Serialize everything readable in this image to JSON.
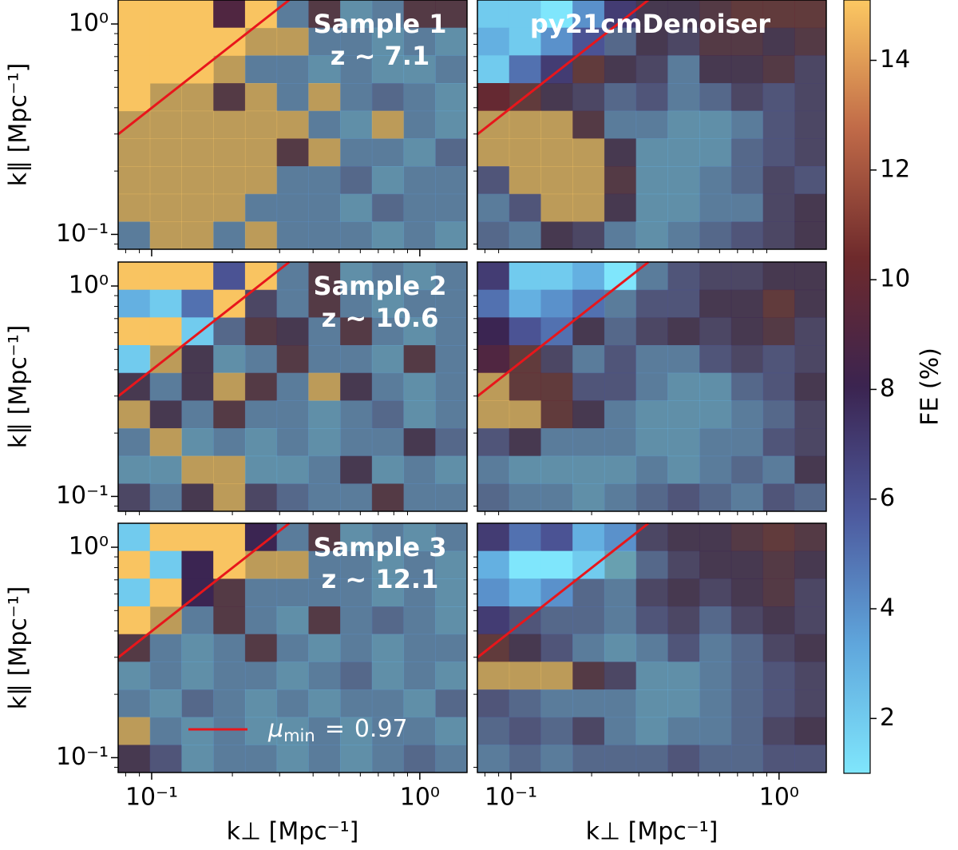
{
  "chart_data": [
    {
      "type": "heatmap",
      "title": [
        "Sample 1",
        "z ~ 7.1"
      ],
      "ylabel": "k∥ [Mpc⁻¹]",
      "xlim": [
        0.075,
        1.5
      ],
      "ylim": [
        0.085,
        1.3
      ],
      "xticks": [
        {
          "value": 0.1,
          "label": "10⁻¹"
        },
        {
          "value": 1,
          "label": "10⁰"
        }
      ],
      "yticks": [
        {
          "value": 0.1,
          "label": "10⁻¹"
        },
        {
          "value": 1,
          "label": "10⁰"
        }
      ],
      "mu_min": 0.97,
      "line_color": "#e8161b",
      "z": [
        [
          15,
          15,
          15,
          9,
          15,
          4,
          9,
          3,
          4,
          9,
          9
        ],
        [
          15,
          15,
          15,
          15,
          15,
          15,
          4,
          4,
          3,
          4,
          3
        ],
        [
          15,
          15,
          15,
          15,
          4,
          4,
          3,
          4,
          3,
          3,
          4
        ],
        [
          15,
          15,
          15,
          9,
          15,
          4,
          15,
          4,
          5,
          4,
          3
        ],
        [
          15,
          15,
          15,
          15,
          15,
          15,
          4,
          3,
          15,
          4,
          3
        ],
        [
          15,
          15,
          15,
          15,
          15,
          9,
          15,
          4,
          4,
          3,
          5
        ],
        [
          15,
          15,
          15,
          15,
          15,
          4,
          4,
          5,
          3,
          4,
          4
        ],
        [
          15,
          15,
          15,
          15,
          4,
          4,
          4,
          3,
          5,
          4,
          4
        ],
        [
          4,
          15,
          15,
          4,
          15,
          4,
          4,
          4,
          3,
          4,
          3
        ]
      ]
    },
    {
      "type": "heatmap",
      "title": [
        "py21cmDenoiser"
      ],
      "xlim": [
        0.075,
        1.5
      ],
      "ylim": [
        0.085,
        1.3
      ],
      "mu_min": 0.97,
      "line_color": "#e8161b",
      "z": [
        [
          2,
          2,
          1,
          4,
          7,
          8,
          8,
          9,
          10,
          10,
          10
        ],
        [
          3,
          2,
          4,
          6,
          5,
          8,
          7,
          9,
          9,
          8,
          9
        ],
        [
          2,
          5,
          7,
          10,
          8,
          7,
          4,
          8,
          8,
          9,
          7
        ],
        [
          10,
          10,
          8,
          7,
          5,
          6,
          4,
          5,
          7,
          6,
          7
        ],
        [
          15,
          15,
          15,
          9,
          4,
          4,
          3,
          3,
          4,
          6,
          7
        ],
        [
          15,
          15,
          15,
          15,
          8,
          3,
          3,
          3,
          5,
          6,
          7
        ],
        [
          6,
          15,
          15,
          15,
          9,
          3,
          3,
          4,
          5,
          7,
          6
        ],
        [
          4,
          6,
          15,
          15,
          8,
          3,
          3,
          4,
          4,
          7,
          8
        ],
        [
          5,
          4,
          8,
          7,
          4,
          3,
          4,
          5,
          6,
          7,
          8
        ]
      ]
    },
    {
      "type": "heatmap",
      "title": [
        "Sample 2",
        "z ~ 10.6"
      ],
      "ylabel": "k∥ [Mpc⁻¹]",
      "xlim": [
        0.075,
        1.5
      ],
      "ylim": [
        0.085,
        1.3
      ],
      "yticks": [
        {
          "value": 0.1,
          "label": "10⁻¹"
        },
        {
          "value": 1,
          "label": "10⁰"
        }
      ],
      "mu_min": 0.97,
      "line_color": "#e8161b",
      "z": [
        [
          15,
          15,
          15,
          6,
          15,
          4,
          9,
          3,
          4,
          3,
          4
        ],
        [
          3,
          2,
          5,
          15,
          7,
          4,
          9,
          4,
          3,
          4,
          4
        ],
        [
          15,
          15,
          2,
          5,
          9,
          8,
          4,
          9,
          4,
          3,
          4
        ],
        [
          2,
          15,
          8,
          3,
          4,
          9,
          4,
          4,
          3,
          9,
          4
        ],
        [
          8,
          4,
          8,
          15,
          9,
          4,
          15,
          8,
          4,
          3,
          4
        ],
        [
          15,
          8,
          4,
          9,
          4,
          4,
          3,
          4,
          5,
          3,
          4
        ],
        [
          4,
          15,
          3,
          4,
          3,
          4,
          3,
          4,
          4,
          8,
          5
        ],
        [
          3,
          3,
          15,
          15,
          3,
          3,
          4,
          8,
          3,
          4,
          3
        ],
        [
          7,
          4,
          8,
          15,
          7,
          5,
          4,
          4,
          9,
          4,
          4
        ]
      ]
    },
    {
      "type": "heatmap",
      "xlim": [
        0.075,
        1.5
      ],
      "ylim": [
        0.085,
        1.3
      ],
      "mu_min": 0.97,
      "line_color": "#e8161b",
      "z": [
        [
          7,
          2,
          2,
          3,
          1,
          4,
          6,
          7,
          7,
          8,
          8
        ],
        [
          5,
          3,
          4,
          5,
          4,
          6,
          6,
          8,
          8,
          10,
          8
        ],
        [
          8,
          6,
          5,
          8,
          5,
          7,
          8,
          7,
          8,
          9,
          7
        ],
        [
          9,
          10,
          7,
          4,
          6,
          4,
          4,
          6,
          7,
          6,
          7
        ],
        [
          15,
          10,
          10,
          6,
          6,
          4,
          3,
          3,
          5,
          6,
          8
        ],
        [
          15,
          15,
          10,
          8,
          4,
          3,
          3,
          3,
          4,
          5,
          7
        ],
        [
          6,
          8,
          4,
          4,
          4,
          3,
          3,
          4,
          4,
          6,
          7
        ],
        [
          4,
          3,
          3,
          3,
          3,
          4,
          3,
          4,
          5,
          4,
          8
        ],
        [
          5,
          4,
          4,
          3,
          4,
          5,
          6,
          5,
          4,
          6,
          5
        ]
      ]
    },
    {
      "type": "heatmap",
      "title": [
        "Sample 3",
        "z ~ 12.1"
      ],
      "ylabel": "k∥ [Mpc⁻¹]",
      "xlabel": "k⊥ [Mpc⁻¹]",
      "xlim": [
        0.075,
        1.5
      ],
      "ylim": [
        0.085,
        1.3
      ],
      "xticks": [
        {
          "value": 0.1,
          "label": "10⁻¹"
        },
        {
          "value": 1,
          "label": "10⁰"
        }
      ],
      "yticks": [
        {
          "value": 0.1,
          "label": "10⁻¹"
        },
        {
          "value": 1,
          "label": "10⁰"
        }
      ],
      "mu_min": 0.97,
      "line_color": "#e8161b",
      "legend": {
        "symbol": "μ",
        "subscript": "min",
        "eq": "="
      },
      "z": [
        [
          2,
          15,
          15,
          15,
          8,
          4,
          9,
          3,
          4,
          3,
          4
        ],
        [
          15,
          2,
          8,
          15,
          15,
          15,
          4,
          4,
          3,
          4,
          3
        ],
        [
          2,
          15,
          8,
          9,
          4,
          4,
          4,
          4,
          3,
          4,
          3
        ],
        [
          15,
          15,
          4,
          9,
          4,
          3,
          9,
          4,
          5,
          4,
          3
        ],
        [
          9,
          4,
          3,
          4,
          9,
          4,
          3,
          4,
          3,
          4,
          4
        ],
        [
          3,
          4,
          3,
          4,
          4,
          3,
          4,
          5,
          3,
          4,
          3
        ],
        [
          4,
          3,
          5,
          4,
          3,
          4,
          3,
          4,
          4,
          3,
          5
        ],
        [
          15,
          4,
          3,
          4,
          3,
          3,
          4,
          3,
          4,
          4,
          3
        ],
        [
          8,
          6,
          3,
          4,
          4,
          3,
          4,
          3,
          4,
          5,
          4
        ]
      ]
    },
    {
      "type": "heatmap",
      "xlabel": "k⊥ [Mpc⁻¹]",
      "xlim": [
        0.075,
        1.5
      ],
      "ylim": [
        0.085,
        1.3
      ],
      "xticks": [
        {
          "value": 0.1,
          "label": "10⁻¹"
        },
        {
          "value": 1,
          "label": "10⁰"
        }
      ],
      "mu_min": 0.97,
      "line_color": "#e8161b",
      "z": [
        [
          7,
          5,
          6,
          3,
          4,
          7,
          8,
          8,
          9,
          10,
          9
        ],
        [
          3,
          1,
          1,
          2,
          2,
          5,
          7,
          8,
          8,
          9,
          8
        ],
        [
          4,
          3,
          4,
          5,
          4,
          7,
          8,
          7,
          8,
          9,
          7
        ],
        [
          7,
          6,
          5,
          5,
          4,
          6,
          7,
          5,
          7,
          8,
          7
        ],
        [
          10,
          8,
          6,
          4,
          3,
          4,
          6,
          4,
          5,
          7,
          8
        ],
        [
          15,
          15,
          15,
          9,
          7,
          3,
          3,
          4,
          5,
          6,
          7
        ],
        [
          6,
          5,
          4,
          4,
          4,
          3,
          3,
          4,
          5,
          6,
          7
        ],
        [
          5,
          6,
          5,
          7,
          4,
          3,
          4,
          4,
          5,
          7,
          8
        ],
        [
          4,
          5,
          4,
          5,
          5,
          5,
          6,
          5,
          5,
          6,
          6
        ]
      ]
    }
  ],
  "colorbar": {
    "label": "FE (%)",
    "lim": [
      1,
      15.1
    ],
    "ticks": [
      2,
      4,
      6,
      8,
      10,
      12,
      14
    ],
    "colors": [
      "#7fe6fc",
      "#5fa6dc",
      "#4d5a9e",
      "#3b2450",
      "#6e2a2c",
      "#c06a48",
      "#fcc862"
    ]
  }
}
